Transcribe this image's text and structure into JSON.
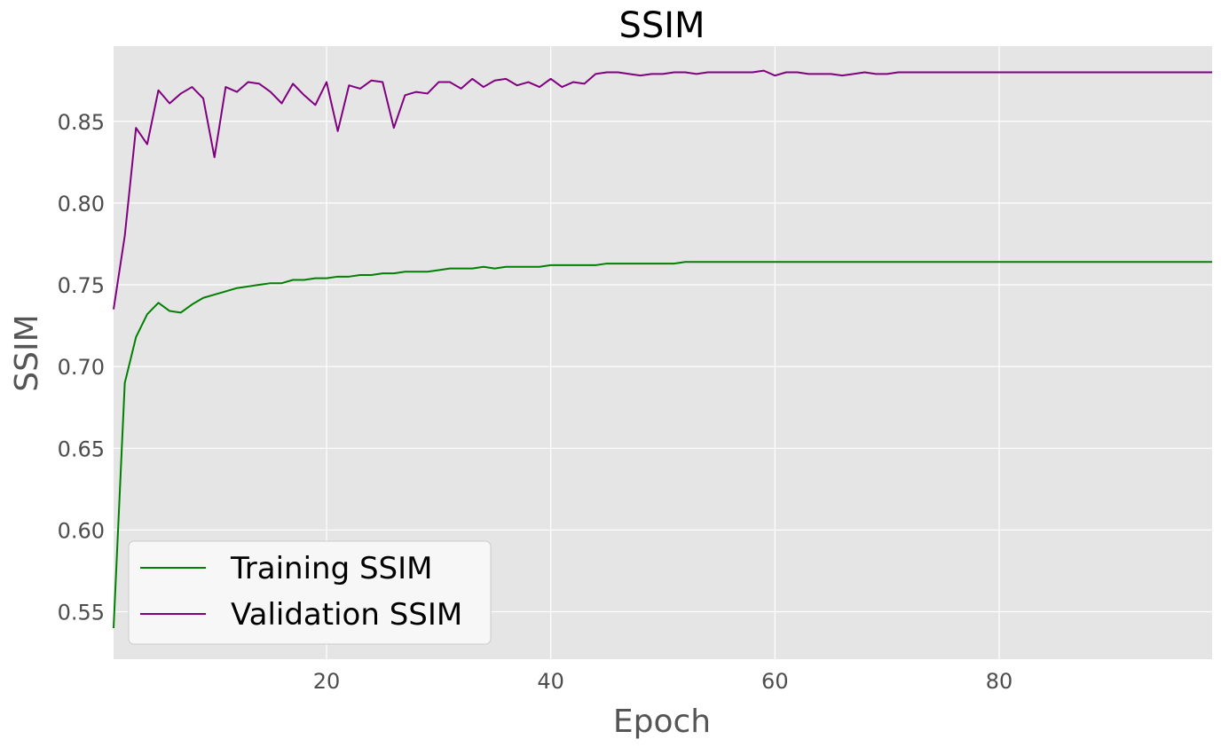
{
  "chart_data": {
    "type": "line",
    "title": "SSIM",
    "xlabel": "Epoch",
    "ylabel": "SSIM",
    "xlim": [
      1,
      99
    ],
    "ylim": [
      0.521,
      0.896
    ],
    "xticks": [
      20,
      40,
      60,
      80
    ],
    "xtick_labels": [
      "20",
      "40",
      "60",
      "80"
    ],
    "yticks": [
      0.55,
      0.6,
      0.65,
      0.7,
      0.75,
      0.8,
      0.85
    ],
    "ytick_labels": [
      "0.55",
      "0.60",
      "0.65",
      "0.70",
      "0.75",
      "0.80",
      "0.85"
    ],
    "grid": true,
    "legend_position": "lower-left",
    "x": [
      1,
      2,
      3,
      4,
      5,
      6,
      7,
      8,
      9,
      10,
      11,
      12,
      13,
      14,
      15,
      16,
      17,
      18,
      19,
      20,
      21,
      22,
      23,
      24,
      25,
      26,
      27,
      28,
      29,
      30,
      31,
      32,
      33,
      34,
      35,
      36,
      37,
      38,
      39,
      40,
      41,
      42,
      43,
      44,
      45,
      46,
      47,
      48,
      49,
      50,
      51,
      52,
      53,
      54,
      55,
      56,
      57,
      58,
      59,
      60,
      61,
      62,
      63,
      64,
      65,
      66,
      67,
      68,
      69,
      70,
      71,
      72,
      73,
      74,
      75,
      76,
      77,
      78,
      79,
      80,
      81,
      82,
      83,
      84,
      85,
      86,
      87,
      88,
      89,
      90,
      91,
      92,
      93,
      94,
      95,
      96,
      97,
      98,
      99
    ],
    "series": [
      {
        "name": "Training SSIM",
        "color": "#008000",
        "values": [
          0.54,
          0.69,
          0.718,
          0.732,
          0.739,
          0.734,
          0.733,
          0.738,
          0.742,
          0.744,
          0.746,
          0.748,
          0.749,
          0.75,
          0.751,
          0.751,
          0.753,
          0.753,
          0.754,
          0.754,
          0.755,
          0.755,
          0.756,
          0.756,
          0.757,
          0.757,
          0.758,
          0.758,
          0.758,
          0.759,
          0.76,
          0.76,
          0.76,
          0.761,
          0.76,
          0.761,
          0.761,
          0.761,
          0.761,
          0.762,
          0.762,
          0.762,
          0.762,
          0.762,
          0.763,
          0.763,
          0.763,
          0.763,
          0.763,
          0.763,
          0.763,
          0.764,
          0.764,
          0.764,
          0.764,
          0.764,
          0.764,
          0.764,
          0.764,
          0.764,
          0.764,
          0.764,
          0.764,
          0.764,
          0.764,
          0.764,
          0.764,
          0.764,
          0.764,
          0.764,
          0.764,
          0.764,
          0.764,
          0.764,
          0.764,
          0.764,
          0.764,
          0.764,
          0.764,
          0.764,
          0.764,
          0.764,
          0.764,
          0.764,
          0.764,
          0.764,
          0.764,
          0.764,
          0.764,
          0.764,
          0.764,
          0.764,
          0.764,
          0.764,
          0.764,
          0.764,
          0.764,
          0.764,
          0.764
        ]
      },
      {
        "name": "Validation SSIM",
        "color": "#800080",
        "values": [
          0.735,
          0.78,
          0.846,
          0.836,
          0.869,
          0.861,
          0.867,
          0.871,
          0.864,
          0.828,
          0.871,
          0.868,
          0.874,
          0.873,
          0.868,
          0.861,
          0.873,
          0.866,
          0.86,
          0.874,
          0.844,
          0.872,
          0.87,
          0.875,
          0.874,
          0.846,
          0.866,
          0.868,
          0.867,
          0.874,
          0.874,
          0.87,
          0.876,
          0.871,
          0.875,
          0.876,
          0.872,
          0.874,
          0.871,
          0.876,
          0.871,
          0.874,
          0.873,
          0.879,
          0.88,
          0.88,
          0.879,
          0.878,
          0.879,
          0.879,
          0.88,
          0.88,
          0.879,
          0.88,
          0.88,
          0.88,
          0.88,
          0.88,
          0.881,
          0.878,
          0.88,
          0.88,
          0.879,
          0.879,
          0.879,
          0.878,
          0.879,
          0.88,
          0.879,
          0.879,
          0.88,
          0.88,
          0.88,
          0.88,
          0.88,
          0.88,
          0.88,
          0.88,
          0.88,
          0.88,
          0.88,
          0.88,
          0.88,
          0.88,
          0.88,
          0.88,
          0.88,
          0.88,
          0.88,
          0.88,
          0.88,
          0.88,
          0.88,
          0.88,
          0.88,
          0.88,
          0.88,
          0.88,
          0.88
        ]
      }
    ]
  }
}
